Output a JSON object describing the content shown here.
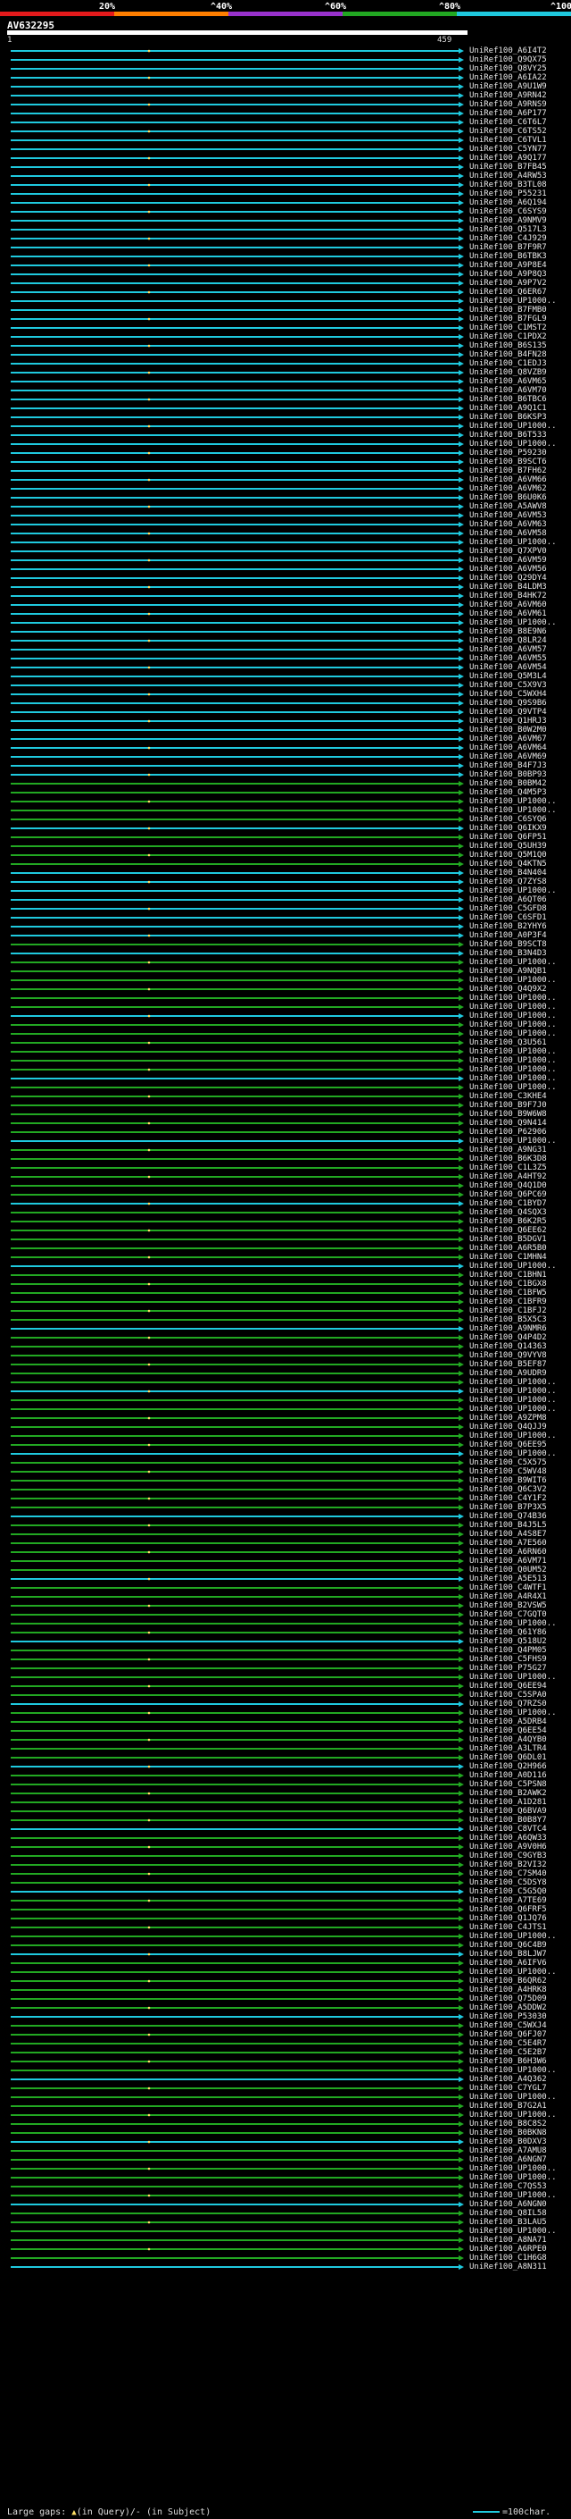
{
  "scale": {
    "ticks": [
      "20%",
      "^40%",
      "^60%",
      "^80%",
      "^100%"
    ],
    "segment_colors": [
      "#e41a1c",
      "#ff7f00",
      "#9932cc",
      "#22a822",
      "#1fc9de"
    ]
  },
  "query": {
    "id": "AV632295",
    "start": "1",
    "end": "459"
  },
  "hits": [
    "UniRef100_A6I4T2",
    "UniRef100_Q9QX75",
    "UniRef100_Q8VY25",
    "UniRef100_A6IA22",
    "UniRef100_A9U1W9",
    "UniRef100_A9RN42",
    "UniRef100_A9RNS9",
    "UniRef100_A6P177",
    "UniRef100_C6T6L7",
    "UniRef100_C6TS52",
    "UniRef100_C6TVL1",
    "UniRef100_C5YN77",
    "UniRef100_A9Q177",
    "UniRef100_B7FB45",
    "UniRef100_A4RW53",
    "UniRef100_B3TL08",
    "UniRef100_P55231",
    "UniRef100_A6Q194",
    "UniRef100_C6SYS9",
    "UniRef100_A9NMV9",
    "UniRef100_Q517L3",
    "UniRef100_C4J929",
    "UniRef100_B7F9R7",
    "UniRef100_B6TBK3",
    "UniRef100_A9P8E4",
    "UniRef100_A9P8Q3",
    "UniRef100_A9P7V2",
    "UniRef100_Q6ER67",
    "UniRef100_UP1000..",
    "UniRef100_B7FMB0",
    "UniRef100_B7FGL9",
    "UniRef100_C1MST2",
    "UniRef100_C1PDX2",
    "UniRef100_B6S135",
    "UniRef100_B4FN28",
    "UniRef100_C1EDJ3",
    "UniRef100_Q8VZB9",
    "UniRef100_A6VM65",
    "UniRef100_A6VM70",
    "UniRef100_B6TBC6",
    "UniRef100_A9Q1C1",
    "UniRef100_B6KSP3",
    "UniRef100_UP1000..",
    "UniRef100_B6T533",
    "UniRef100_UP1000..",
    "UniRef100_P59230",
    "UniRef100_B9SCT6",
    "UniRef100_B7FH62",
    "UniRef100_A6VM66",
    "UniRef100_A6VM62",
    "UniRef100_B6U0K6",
    "UniRef100_A5AWV8",
    "UniRef100_A6VM53",
    "UniRef100_A6VM63",
    "UniRef100_A6VM58",
    "UniRef100_UP1000..",
    "UniRef100_Q7XPV0",
    "UniRef100_A6VM59",
    "UniRef100_A6VM56",
    "UniRef100_Q29DY4",
    "UniRef100_B4LDM3",
    "UniRef100_B4HK72",
    "UniRef100_A6VM60",
    "UniRef100_A6VM61",
    "UniRef100_UP1000..",
    "UniRef100_B8E9N6",
    "UniRef100_Q8LR24",
    "UniRef100_A6VM57",
    "UniRef100_A6VM55",
    "UniRef100_A6VM54",
    "UniRef100_Q5M3L4",
    "UniRef100_C5X9V3",
    "UniRef100_C5WXH4",
    "UniRef100_Q9S9B6",
    "UniRef100_Q9VTP4",
    "UniRef100_Q1HRJ3",
    "UniRef100_B0W2M0",
    "UniRef100_A6VM67",
    "UniRef100_A6VM64",
    "UniRef100_A6VM69",
    "UniRef100_B4F7J3",
    "UniRef100_B0BP93",
    "UniRef100_B0BM42",
    "UniRef100_Q4M5P3",
    "UniRef100_UP1000..",
    "UniRef100_UP1000..",
    "UniRef100_C6SYQ6",
    "UniRef100_Q6IKX9",
    "UniRef100_Q6FP51",
    "UniRef100_Q5UH39",
    "UniRef100_Q5M1Q0",
    "UniRef100_Q4KTN5",
    "UniRef100_B4N404",
    "UniRef100_Q7ZYS8",
    "UniRef100_UP1000..",
    "UniRef100_A6QT06",
    "UniRef100_C5GFD8",
    "UniRef100_C6SFD1",
    "UniRef100_B2YHY6",
    "UniRef100_A0P3F4",
    "UniRef100_B9SCT8",
    "UniRef100_B3N4D3",
    "UniRef100_UP1000..",
    "UniRef100_A9NQB1",
    "UniRef100_UP1000..",
    "UniRef100_Q4Q9X2",
    "UniRef100_UP1000..",
    "UniRef100_UP1000..",
    "UniRef100_UP1000..",
    "UniRef100_UP1000..",
    "UniRef100_UP1000..",
    "UniRef100_Q3U561",
    "UniRef100_UP1000..",
    "UniRef100_UP1000..",
    "UniRef100_UP1000..",
    "UniRef100_UP1000..",
    "UniRef100_UP1000..",
    "UniRef100_C3KHE4",
    "UniRef100_B9F7J0",
    "UniRef100_B9W6W8",
    "UniRef100_Q9N414",
    "UniRef100_P62906",
    "UniRef100_UP1000..",
    "UniRef100_A9NG31",
    "UniRef100_B6K3D8",
    "UniRef100_C1L3Z5",
    "UniRef100_A4HT92",
    "UniRef100_Q4Q1D0",
    "UniRef100_Q6PC69",
    "UniRef100_C1BYD7",
    "UniRef100_Q4SQX3",
    "UniRef100_B6K2R5",
    "UniRef100_Q6EE62",
    "UniRef100_B5DGV1",
    "UniRef100_A6R5B0",
    "UniRef100_C1MHN4",
    "UniRef100_UP1000..",
    "UniRef100_C1BHN1",
    "UniRef100_C1BGX8",
    "UniRef100_C1BFW5",
    "UniRef100_C1BFR9",
    "UniRef100_C1BFJ2",
    "UniRef100_B5X5C3",
    "UniRef100_A9NMR6",
    "UniRef100_Q4P4D2",
    "UniRef100_Q14363",
    "UniRef100_Q9VYV8",
    "UniRef100_B5EF87",
    "UniRef100_A9UDR9",
    "UniRef100_UP1000..",
    "UniRef100_UP1000..",
    "UniRef100_UP1000..",
    "UniRef100_UP1000..",
    "UniRef100_A9ZPM8",
    "UniRef100_Q4QJJ9",
    "UniRef100_UP1000..",
    "UniRef100_Q6EE95",
    "UniRef100_UP1000..",
    "UniRef100_C5X575",
    "UniRef100_C5WV48",
    "UniRef100_B9WIT6",
    "UniRef100_Q6C3V2",
    "UniRef100_C4Y1F2",
    "UniRef100_B7P3X5",
    "UniRef100_Q74B36",
    "UniRef100_B4J5L5",
    "UniRef100_A4S8E7",
    "UniRef100_A7E560",
    "UniRef100_A6RN60",
    "UniRef100_A6VM71",
    "UniRef100_Q0UM52",
    "UniRef100_A5E513",
    "UniRef100_C4WTF1",
    "UniRef100_A4R4X1",
    "UniRef100_B2VSW5",
    "UniRef100_C7GQT0",
    "UniRef100_UP1000..",
    "UniRef100_Q61Y86",
    "UniRef100_Q518U2",
    "UniRef100_Q4PM05",
    "UniRef100_C5FHS9",
    "UniRef100_P75G27",
    "UniRef100_UP1000..",
    "UniRef100_Q6EE94",
    "UniRef100_C5SPA0",
    "UniRef100_Q7RZS0",
    "UniRef100_UP1000..",
    "UniRef100_A5DRB4",
    "UniRef100_Q6EE54",
    "UniRef100_A4QYB0",
    "UniRef100_A3LTR4",
    "UniRef100_Q6DL01",
    "UniRef100_Q2H966",
    "UniRef100_A0D116",
    "UniRef100_C5PSN8",
    "UniRef100_B2AWK2",
    "UniRef100_A1D281",
    "UniRef100_Q6BVA9",
    "UniRef100_B0B8Y7",
    "UniRef100_C8VTC4",
    "UniRef100_A6QW33",
    "UniRef100_A9V0H6",
    "UniRef100_C9GYB3",
    "UniRef100_B2VI32",
    "UniRef100_C7SM40",
    "UniRef100_C5DSY8",
    "UniRef100_C5G5Q0",
    "UniRef100_A7TE69",
    "UniRef100_Q6FRF5",
    "UniRef100_Q1JQ76",
    "UniRef100_C4JTS1",
    "UniRef100_UP1000..",
    "UniRef100_Q6C4B9",
    "UniRef100_B8LJW7",
    "UniRef100_A6IFV6",
    "UniRef100_UP1000..",
    "UniRef100_B6QR62",
    "UniRef100_A4HRK8",
    "UniRef100_Q75D09",
    "UniRef100_A5DDW2",
    "UniRef100_P53030",
    "UniRef100_C5WXJ4",
    "UniRef100_Q6FJ07",
    "UniRef100_C5E4R7",
    "UniRef100_C5E2B7",
    "UniRef100_B6H3W6",
    "UniRef100_UP1000..",
    "UniRef100_A4Q362",
    "UniRef100_C7YGL7",
    "UniRef100_UP1000..",
    "UniRef100_B7G2A1",
    "UniRef100_UP1000..",
    "UniRef100_B8C8S2",
    "UniRef100_B0BKN8",
    "UniRef100_B0DXV3",
    "UniRef100_A7AMU8",
    "UniRef100_A6NGN7",
    "UniRef100_UP1000..",
    "UniRef100_UP1000..",
    "UniRef100_C7QS53",
    "UniRef100_UP1000..",
    "UniRef100_A6NGN0",
    "UniRef100_Q8IL58",
    "UniRef100_B3LAU5",
    "UniRef100_UP1000..",
    "UniRef100_A8NA71",
    "UniRef100_A6RPE0",
    "UniRef100_C1H6G8",
    "UniRef100_A8N311"
  ],
  "legend": {
    "gaps_label": "Large gaps:",
    "gaps_query": "(in Query)",
    "gaps_subject": "/- (in Subject)",
    "scale_label": "=100char."
  }
}
